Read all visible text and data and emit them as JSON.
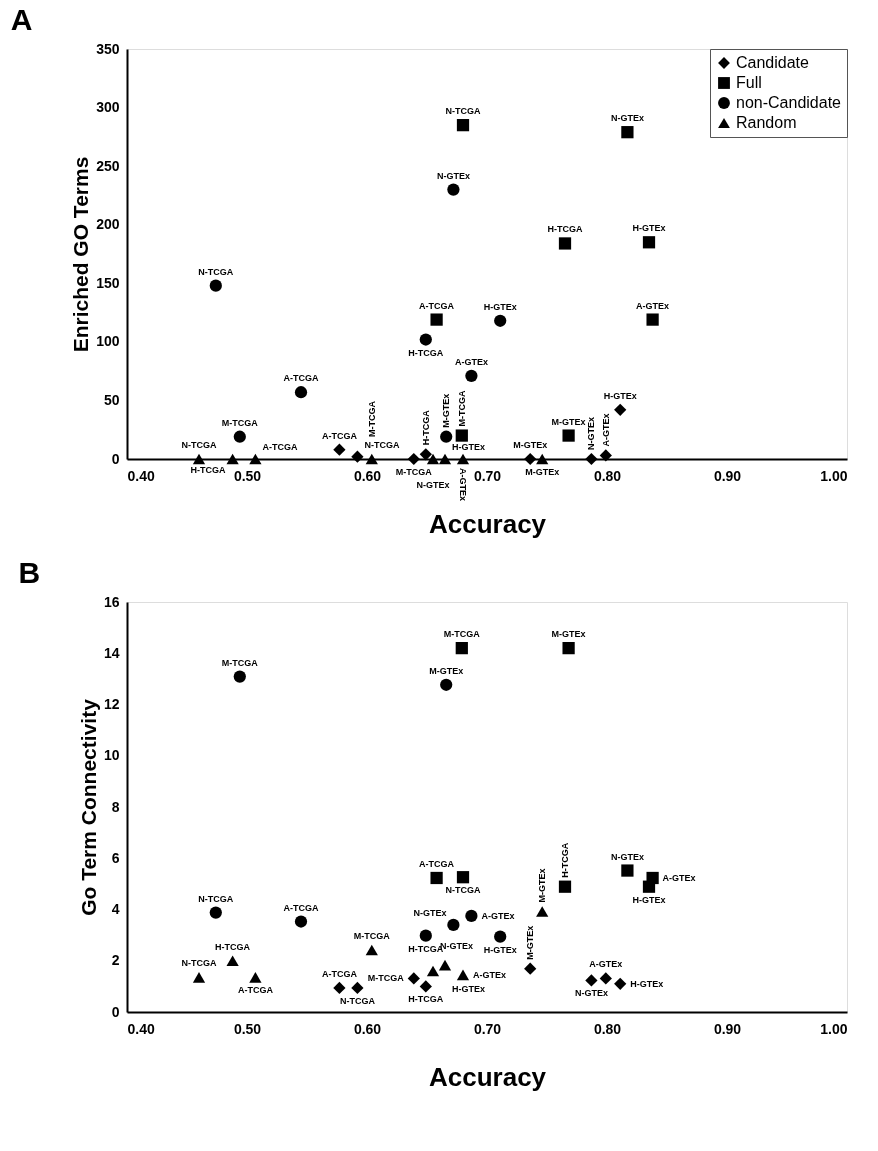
{
  "chart_data": [
    {
      "type": "scatter",
      "title": "A",
      "xlabel": "Accuracy",
      "ylabel": "Enriched GO Terms",
      "legend": "top right",
      "xlim": [
        0.4,
        1.0
      ],
      "xticks": [
        {
          "value": 0.4,
          "label": "0.40"
        },
        {
          "value": 0.5,
          "label": "0.50"
        },
        {
          "value": 0.6,
          "label": "0.60"
        },
        {
          "value": 0.7,
          "label": "0.70"
        },
        {
          "value": 0.8,
          "label": "0.80"
        },
        {
          "value": 0.9,
          "label": "0.90"
        },
        {
          "value": 1.0,
          "label": "1.00"
        }
      ],
      "ylim": [
        0,
        350
      ],
      "yticks": [
        0,
        50,
        100,
        150,
        200,
        250,
        300,
        350
      ],
      "series": [
        {
          "name": "Candidate",
          "color": "#000000",
          "marker": "diamond",
          "x": [
            0.577,
            0.592,
            0.639,
            0.649,
            0.736,
            0.787,
            0.799,
            0.811
          ],
          "values": [
            8,
            2,
            0,
            4,
            0,
            0,
            3,
            42
          ],
          "value_labels": [
            "A-TCGA",
            "N-TCGA",
            "M-TCGA",
            "H-TCGA",
            "M-GTEx",
            "N-GTEx",
            "A-GTEx",
            "H-GTEx"
          ]
        },
        {
          "name": "Full",
          "color": "#000000",
          "marker": "square",
          "x": [
            0.658,
            0.68,
            0.679,
            0.765,
            0.768,
            0.817,
            0.838,
            0.835
          ],
          "values": [
            119,
            285,
            20,
            184,
            20,
            279,
            119,
            185
          ],
          "value_labels": [
            "A-TCGA",
            "N-TCGA",
            "M-TCGA",
            "H-TCGA",
            "M-GTEx",
            "N-GTEx",
            "A-GTEx",
            "H-GTEx"
          ]
        },
        {
          "name": "non-Candidate",
          "color": "#000000",
          "marker": "circle",
          "x": [
            0.474,
            0.494,
            0.545,
            0.649,
            0.666,
            0.672,
            0.687,
            0.711
          ],
          "values": [
            148,
            19,
            57,
            102,
            19,
            230,
            71,
            118
          ],
          "value_labels": [
            "N-TCGA",
            "M-TCGA",
            "A-TCGA",
            "H-TCGA",
            "M-GTEx",
            "N-GTEx",
            "A-GTEx",
            "H-GTEx"
          ]
        },
        {
          "name": "Random",
          "color": "#000000",
          "marker": "triangle",
          "x": [
            0.46,
            0.488,
            0.507,
            0.604,
            0.655,
            0.665,
            0.68,
            0.746
          ],
          "values": [
            0,
            0,
            0,
            0,
            0,
            0,
            0,
            0
          ],
          "value_labels": [
            "N-TCGA",
            "H-TCGA",
            "A-TCGA",
            "M-TCGA",
            "N-GTEx",
            "H-GTEx",
            "A-GTEx",
            "M-GTEx"
          ]
        }
      ]
    },
    {
      "type": "scatter",
      "title": "B",
      "xlabel": "Accuracy",
      "ylabel": "Go Term Connectivity",
      "legend": "top right",
      "xlim": [
        0.4,
        1.0
      ],
      "xticks": [
        {
          "value": 0.4,
          "label": "0.40"
        },
        {
          "value": 0.5,
          "label": "0.50"
        },
        {
          "value": 0.6,
          "label": "0.60"
        },
        {
          "value": 0.7,
          "label": "0.70"
        },
        {
          "value": 0.8,
          "label": "0.80"
        },
        {
          "value": 0.9,
          "label": "0.90"
        },
        {
          "value": 1.0,
          "label": "1.00"
        }
      ],
      "ylim": [
        0,
        16
      ],
      "yticks": [
        0,
        2,
        4,
        6,
        8,
        10,
        12,
        14,
        16
      ],
      "series": [
        {
          "name": "Candidate",
          "color": "#000000",
          "marker": "diamond",
          "x": [
            0.577,
            0.592,
            0.639,
            0.649,
            0.736,
            0.787,
            0.799,
            0.811
          ],
          "values": [
            0.94,
            0.94,
            1.31,
            1.0,
            1.69,
            1.23,
            1.31,
            1.1
          ],
          "value_labels": [
            "A-TCGA",
            "N-TCGA",
            "M-TCGA",
            "H-TCGA",
            "M-GTEx",
            "N-GTEx",
            "A-GTEx",
            "H-GTEx"
          ]
        },
        {
          "name": "Full",
          "color": "#000000",
          "marker": "square",
          "x": [
            0.658,
            0.68,
            0.679,
            0.765,
            0.768,
            0.817,
            0.838,
            0.835
          ],
          "values": [
            5.23,
            5.26,
            14.2,
            4.89,
            14.2,
            5.52,
            5.23,
            4.89
          ],
          "value_labels": [
            "A-TCGA",
            "N-TCGA",
            "M-TCGA",
            "H-TCGA",
            "M-GTEx",
            "N-GTEx",
            "A-GTEx",
            "H-GTEx"
          ]
        },
        {
          "name": "non-Candidate",
          "color": "#000000",
          "marker": "circle",
          "x": [
            0.474,
            0.494,
            0.545,
            0.649,
            0.666,
            0.672,
            0.687,
            0.711
          ],
          "values": [
            3.88,
            13.09,
            3.53,
            2.98,
            12.77,
            3.4,
            3.75,
            2.94
          ],
          "value_labels": [
            "N-TCGA",
            "M-TCGA",
            "A-TCGA",
            "H-TCGA",
            "M-GTEx",
            "N-GTEx",
            "A-GTEx",
            "H-GTEx"
          ]
        },
        {
          "name": "Random",
          "color": "#000000",
          "marker": "triangle",
          "x": [
            0.46,
            0.488,
            0.507,
            0.604,
            0.655,
            0.665,
            0.68,
            0.746
          ],
          "values": [
            1.35,
            2.0,
            1.35,
            2.42,
            1.6,
            1.83,
            1.45,
            3.92
          ],
          "value_labels": [
            "N-TCGA",
            "H-TCGA",
            "A-TCGA",
            "M-TCGA",
            "N-GTEx",
            "H-GTEx",
            "A-GTEx",
            "M-GTEx"
          ]
        }
      ]
    }
  ]
}
